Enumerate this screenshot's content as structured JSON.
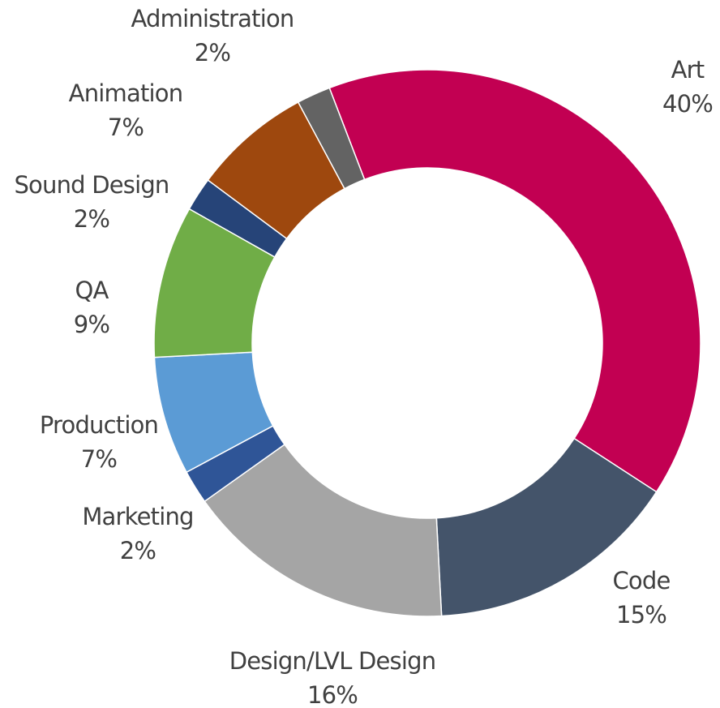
{
  "chart_data": {
    "type": "pie",
    "donut": true,
    "title": "",
    "categories": [
      "Art",
      "Code",
      "Design/LVL Design",
      "Marketing",
      "Production",
      "QA",
      "Sound Design",
      "Animation",
      "Administration"
    ],
    "values": [
      40,
      15,
      16,
      2,
      7,
      9,
      2,
      7,
      2
    ],
    "value_labels": [
      "40%",
      "15%",
      "16%",
      "2%",
      "7%",
      "9%",
      "2%",
      "7%",
      "2%"
    ],
    "colors": [
      "#c20052",
      "#44546a",
      "#a5a5a5",
      "#2f5597",
      "#5b9bd5",
      "#70ad47",
      "#264478",
      "#9e480e",
      "#636363"
    ],
    "start_angle_deg": -21,
    "direction": "clockwise",
    "legend": "none",
    "labels_position": "outside"
  }
}
